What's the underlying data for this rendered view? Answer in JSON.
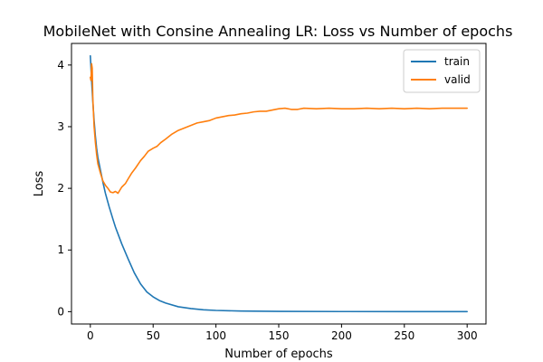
{
  "chart_data": {
    "type": "line",
    "title": "MobileNet with Consine Annealing LR: Loss vs Number of epochs",
    "xlabel": "Number of epochs",
    "ylabel": "Loss",
    "xlim": [
      -15,
      315
    ],
    "ylim": [
      -0.2,
      4.35
    ],
    "xticks": [
      0,
      50,
      100,
      150,
      200,
      250,
      300
    ],
    "yticks": [
      0,
      1,
      2,
      3,
      4
    ],
    "grid": false,
    "legend": {
      "placement": "top-right",
      "entries": [
        "train",
        "valid"
      ]
    },
    "series": [
      {
        "name": "train",
        "color": "#1f77b4",
        "points": [
          [
            0,
            4.15
          ],
          [
            1,
            3.75
          ],
          [
            2,
            3.4
          ],
          [
            3,
            3.1
          ],
          [
            4,
            2.85
          ],
          [
            5,
            2.65
          ],
          [
            6,
            2.5
          ],
          [
            8,
            2.3
          ],
          [
            10,
            2.1
          ],
          [
            12,
            1.92
          ],
          [
            15,
            1.7
          ],
          [
            18,
            1.5
          ],
          [
            20,
            1.37
          ],
          [
            25,
            1.1
          ],
          [
            30,
            0.86
          ],
          [
            35,
            0.63
          ],
          [
            40,
            0.45
          ],
          [
            45,
            0.32
          ],
          [
            50,
            0.24
          ],
          [
            55,
            0.18
          ],
          [
            60,
            0.14
          ],
          [
            70,
            0.08
          ],
          [
            80,
            0.05
          ],
          [
            90,
            0.03
          ],
          [
            100,
            0.02
          ],
          [
            120,
            0.01
          ],
          [
            150,
            0.005
          ],
          [
            200,
            0.002
          ],
          [
            250,
            0.001
          ],
          [
            300,
            0.001
          ]
        ]
      },
      {
        "name": "valid",
        "color": "#ff7f0e",
        "points": [
          [
            0,
            3.8
          ],
          [
            0.5,
            3.75
          ],
          [
            1,
            4.02
          ],
          [
            1.5,
            3.95
          ],
          [
            2,
            3.45
          ],
          [
            3,
            3.0
          ],
          [
            4,
            2.75
          ],
          [
            5,
            2.55
          ],
          [
            6,
            2.4
          ],
          [
            8,
            2.25
          ],
          [
            10,
            2.12
          ],
          [
            12,
            2.05
          ],
          [
            14,
            2.0
          ],
          [
            16,
            1.94
          ],
          [
            18,
            1.93
          ],
          [
            20,
            1.95
          ],
          [
            22,
            1.92
          ],
          [
            25,
            2.02
          ],
          [
            28,
            2.08
          ],
          [
            30,
            2.15
          ],
          [
            33,
            2.25
          ],
          [
            36,
            2.33
          ],
          [
            40,
            2.45
          ],
          [
            43,
            2.52
          ],
          [
            46,
            2.6
          ],
          [
            50,
            2.65
          ],
          [
            53,
            2.68
          ],
          [
            56,
            2.74
          ],
          [
            60,
            2.8
          ],
          [
            65,
            2.88
          ],
          [
            70,
            2.94
          ],
          [
            75,
            2.98
          ],
          [
            80,
            3.02
          ],
          [
            85,
            3.06
          ],
          [
            90,
            3.08
          ],
          [
            95,
            3.1
          ],
          [
            100,
            3.14
          ],
          [
            105,
            3.16
          ],
          [
            110,
            3.18
          ],
          [
            115,
            3.19
          ],
          [
            120,
            3.21
          ],
          [
            125,
            3.22
          ],
          [
            130,
            3.24
          ],
          [
            135,
            3.25
          ],
          [
            140,
            3.25
          ],
          [
            145,
            3.27
          ],
          [
            150,
            3.29
          ],
          [
            155,
            3.3
          ],
          [
            160,
            3.28
          ],
          [
            165,
            3.28
          ],
          [
            170,
            3.3
          ],
          [
            180,
            3.29
          ],
          [
            190,
            3.3
          ],
          [
            200,
            3.29
          ],
          [
            210,
            3.29
          ],
          [
            220,
            3.3
          ],
          [
            230,
            3.29
          ],
          [
            240,
            3.3
          ],
          [
            250,
            3.29
          ],
          [
            260,
            3.3
          ],
          [
            270,
            3.29
          ],
          [
            280,
            3.3
          ],
          [
            290,
            3.3
          ],
          [
            300,
            3.3
          ]
        ]
      }
    ]
  }
}
